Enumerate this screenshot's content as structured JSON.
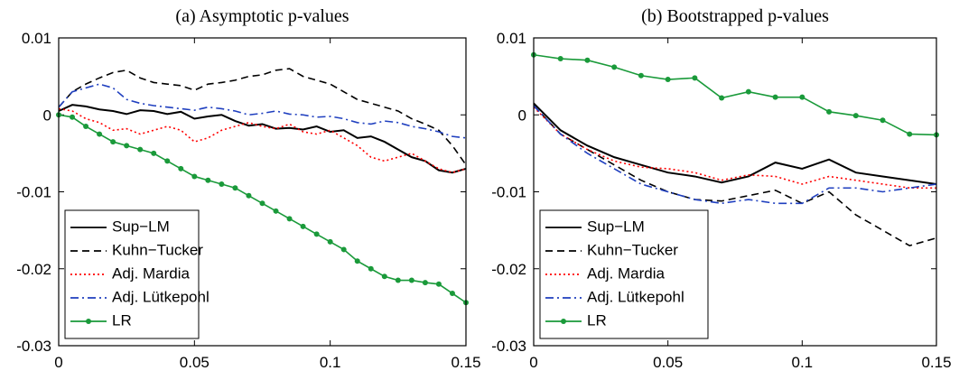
{
  "chart_data": [
    {
      "type": "line",
      "title": "(a) Asymptotic p-values",
      "x": [
        0,
        0.005,
        0.01,
        0.015,
        0.02,
        0.025,
        0.03,
        0.035,
        0.04,
        0.045,
        0.05,
        0.055,
        0.06,
        0.065,
        0.07,
        0.075,
        0.08,
        0.085,
        0.09,
        0.095,
        0.1,
        0.105,
        0.11,
        0.115,
        0.12,
        0.125,
        0.13,
        0.135,
        0.14,
        0.145,
        0.15
      ],
      "xlim": [
        0,
        0.15
      ],
      "xticks": [
        0,
        0.05,
        0.1,
        0.15
      ],
      "ylim": [
        -0.03,
        0.01
      ],
      "yticks": [
        -0.03,
        -0.02,
        -0.01,
        0,
        0.01
      ],
      "legend": "lower left",
      "series": [
        {
          "name": "Sup−LM",
          "color": "#000000",
          "dash": "solid",
          "marker": false,
          "values": [
            0.0005,
            0.0013,
            0.0011,
            0.0007,
            0.0005,
            0.0001,
            0.0006,
            0.0005,
            0.0001,
            0.0004,
            -0.0005,
            -0.0002,
            0.0,
            -0.0008,
            -0.0014,
            -0.0012,
            -0.0018,
            -0.0017,
            -0.0019,
            -0.0015,
            -0.0022,
            -0.002,
            -0.003,
            -0.0028,
            -0.0035,
            -0.0045,
            -0.0055,
            -0.006,
            -0.0072,
            -0.0075,
            -0.007
          ]
        },
        {
          "name": "Kuhn−Tucker",
          "color": "#000000",
          "dash": "dashed",
          "marker": false,
          "values": [
            0.001,
            0.003,
            0.004,
            0.0048,
            0.0055,
            0.0058,
            0.0048,
            0.0042,
            0.004,
            0.0038,
            0.0032,
            0.004,
            0.0042,
            0.0045,
            0.005,
            0.0052,
            0.0058,
            0.006,
            0.005,
            0.0045,
            0.004,
            0.003,
            0.002,
            0.0015,
            0.001,
            0.0005,
            -0.0005,
            -0.0012,
            -0.002,
            -0.004,
            -0.0065
          ]
        },
        {
          "name": "Adj. Mardia",
          "color": "#ff0000",
          "dash": "dotted",
          "marker": false,
          "values": [
            0.0008,
            0.0005,
            -0.0005,
            -0.001,
            -0.002,
            -0.0018,
            -0.0025,
            -0.002,
            -0.0015,
            -0.002,
            -0.0035,
            -0.003,
            -0.002,
            -0.0015,
            -0.001,
            -0.0015,
            -0.0018,
            -0.0012,
            -0.0022,
            -0.0025,
            -0.002,
            -0.003,
            -0.004,
            -0.0055,
            -0.006,
            -0.0055,
            -0.005,
            -0.006,
            -0.007,
            -0.0075,
            -0.007
          ]
        },
        {
          "name": "Adj. Lütkepohl",
          "color": "#1f3fbf",
          "dash": "dashdot",
          "marker": false,
          "values": [
            0.001,
            0.003,
            0.0035,
            0.004,
            0.0035,
            0.002,
            0.0015,
            0.0012,
            0.001,
            0.0008,
            0.0006,
            0.001,
            0.0008,
            0.0005,
            0.0,
            0.0002,
            0.0005,
            0.0001,
            0.0,
            -0.0003,
            -0.0002,
            -0.0005,
            -0.001,
            -0.0012,
            -0.0008,
            -0.001,
            -0.0015,
            -0.0018,
            -0.0022,
            -0.0028,
            -0.003
          ]
        },
        {
          "name": "LR",
          "color": "#1a9a3a",
          "dash": "solid",
          "marker": true,
          "values": [
            0,
            -0.0003,
            -0.0015,
            -0.0025,
            -0.0035,
            -0.004,
            -0.0045,
            -0.005,
            -0.006,
            -0.007,
            -0.008,
            -0.0085,
            -0.009,
            -0.0095,
            -0.0105,
            -0.0115,
            -0.0125,
            -0.0135,
            -0.0145,
            -0.0155,
            -0.0165,
            -0.0175,
            -0.019,
            -0.02,
            -0.021,
            -0.0215,
            -0.0215,
            -0.0218,
            -0.022,
            -0.0232,
            -0.0244
          ]
        }
      ]
    },
    {
      "type": "line",
      "title": "(b) Bootstrapped p-values",
      "x": [
        0,
        0.01,
        0.02,
        0.03,
        0.04,
        0.05,
        0.06,
        0.07,
        0.08,
        0.09,
        0.1,
        0.11,
        0.12,
        0.13,
        0.14,
        0.15
      ],
      "xlim": [
        0,
        0.15
      ],
      "xticks": [
        0,
        0.05,
        0.1,
        0.15
      ],
      "ylim": [
        -0.03,
        0.01
      ],
      "yticks": [
        -0.03,
        -0.02,
        -0.01,
        0,
        0.01
      ],
      "legend": "lower left",
      "series": [
        {
          "name": "Sup−LM",
          "color": "#000000",
          "dash": "solid",
          "marker": false,
          "values": [
            0.0015,
            -0.002,
            -0.004,
            -0.0055,
            -0.0065,
            -0.0075,
            -0.008,
            -0.0088,
            -0.008,
            -0.0062,
            -0.007,
            -0.0058,
            -0.0075,
            -0.008,
            -0.0085,
            -0.009
          ]
        },
        {
          "name": "Kuhn−Tucker",
          "color": "#000000",
          "dash": "dashed",
          "marker": false,
          "values": [
            0.0012,
            -0.0025,
            -0.0045,
            -0.0065,
            -0.0085,
            -0.01,
            -0.011,
            -0.0112,
            -0.0105,
            -0.0098,
            -0.0115,
            -0.01,
            -0.013,
            -0.015,
            -0.017,
            -0.016
          ]
        },
        {
          "name": "Adj. Mardia",
          "color": "#ff0000",
          "dash": "dotted",
          "marker": false,
          "values": [
            0.001,
            -0.0025,
            -0.0045,
            -0.006,
            -0.0068,
            -0.007,
            -0.0075,
            -0.0085,
            -0.0078,
            -0.008,
            -0.009,
            -0.008,
            -0.0085,
            -0.009,
            -0.0095,
            -0.0095
          ]
        },
        {
          "name": "Adj. Lütkepohl",
          "color": "#1f3fbf",
          "dash": "dashdot",
          "marker": false,
          "values": [
            0.0012,
            -0.0025,
            -0.005,
            -0.007,
            -0.009,
            -0.01,
            -0.011,
            -0.0115,
            -0.011,
            -0.0115,
            -0.0115,
            -0.0095,
            -0.0095,
            -0.01,
            -0.0095,
            -0.009
          ]
        },
        {
          "name": "LR",
          "color": "#1a9a3a",
          "dash": "solid",
          "marker": true,
          "values": [
            0.0078,
            0.0073,
            0.0071,
            0.0062,
            0.0051,
            0.0046,
            0.0048,
            0.0022,
            0.003,
            0.0023,
            0.0023,
            0.0004,
            -0.0001,
            -0.0007,
            -0.0025,
            -0.0026
          ]
        }
      ]
    }
  ]
}
